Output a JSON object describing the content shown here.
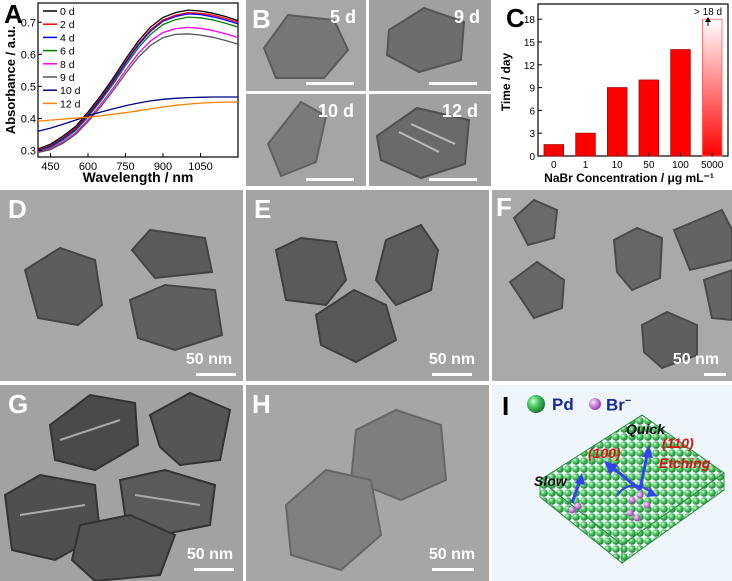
{
  "panel_labels": {
    "A": "A",
    "B": "B",
    "C": "C",
    "D": "D",
    "E": "E",
    "F": "F",
    "G": "G",
    "H": "H",
    "I": "I"
  },
  "chart_data": [
    {
      "type": "line",
      "xlabel": "Wavelength / nm",
      "ylabel": "Absorbance / a.u.",
      "xlim": [
        400,
        1200
      ],
      "ylim": [
        0.28,
        0.76
      ],
      "xticks": [
        "450",
        "600",
        "750",
        "900",
        "1050"
      ],
      "yticks": [
        "0.3",
        "0.4",
        "0.5",
        "0.6",
        "0.7"
      ],
      "legend_placement": "top-left",
      "x": [
        400,
        450,
        500,
        550,
        600,
        650,
        700,
        750,
        800,
        850,
        900,
        950,
        1000,
        1050,
        1100,
        1150,
        1200
      ],
      "series": [
        {
          "name": "0 d",
          "color": "#000000",
          "values": [
            0.305,
            0.32,
            0.345,
            0.375,
            0.42,
            0.47,
            0.525,
            0.585,
            0.64,
            0.685,
            0.715,
            0.73,
            0.738,
            0.735,
            0.728,
            0.718,
            0.705
          ]
        },
        {
          "name": "2 d",
          "color": "#ff0000",
          "values": [
            0.302,
            0.316,
            0.34,
            0.37,
            0.414,
            0.464,
            0.518,
            0.577,
            0.632,
            0.676,
            0.707,
            0.722,
            0.73,
            0.728,
            0.722,
            0.712,
            0.7
          ]
        },
        {
          "name": "4 d",
          "color": "#0000ff",
          "values": [
            0.3,
            0.313,
            0.337,
            0.366,
            0.41,
            0.46,
            0.514,
            0.573,
            0.628,
            0.672,
            0.703,
            0.718,
            0.726,
            0.724,
            0.717,
            0.707,
            0.695
          ]
        },
        {
          "name": "6 d",
          "color": "#008000",
          "values": [
            0.298,
            0.31,
            0.333,
            0.362,
            0.405,
            0.454,
            0.507,
            0.565,
            0.619,
            0.662,
            0.693,
            0.708,
            0.716,
            0.714,
            0.707,
            0.697,
            0.685
          ]
        },
        {
          "name": "8 d",
          "color": "#ff00ff",
          "values": [
            0.296,
            0.306,
            0.327,
            0.355,
            0.396,
            0.443,
            0.494,
            0.55,
            0.602,
            0.642,
            0.668,
            0.68,
            0.684,
            0.681,
            0.674,
            0.664,
            0.652
          ]
        },
        {
          "name": "9 d",
          "color": "#555555",
          "values": [
            0.294,
            0.303,
            0.323,
            0.35,
            0.39,
            0.436,
            0.486,
            0.54,
            0.59,
            0.628,
            0.652,
            0.662,
            0.664,
            0.66,
            0.653,
            0.643,
            0.632
          ]
        },
        {
          "name": "10 d",
          "color": "#000080",
          "values": [
            0.36,
            0.37,
            0.382,
            0.395,
            0.408,
            0.42,
            0.43,
            0.44,
            0.448,
            0.455,
            0.46,
            0.463,
            0.465,
            0.466,
            0.467,
            0.467,
            0.467
          ]
        },
        {
          "name": "12 d",
          "color": "#ff8000",
          "values": [
            0.392,
            0.395,
            0.398,
            0.401,
            0.404,
            0.408,
            0.413,
            0.418,
            0.424,
            0.43,
            0.436,
            0.441,
            0.445,
            0.448,
            0.45,
            0.451,
            0.452
          ]
        }
      ]
    },
    {
      "type": "bar",
      "xlabel": "NaBr Concentration / μg mL⁻¹",
      "ylabel": "Time / day",
      "ylim": [
        0,
        20
      ],
      "yticks": [
        "0",
        "3",
        "6",
        "9",
        "12",
        "15",
        "18"
      ],
      "categories": [
        "0",
        "1",
        "10",
        "50",
        "100",
        "5000"
      ],
      "values": [
        1.5,
        3,
        9,
        10,
        14,
        18
      ],
      "bar_color": "#ff0000",
      "last_bar_style": "gradient, open-ended above 18",
      "annotation": "> 18 d"
    }
  ],
  "panel_b": {
    "days": [
      "5 d",
      "9 d",
      "10 d",
      "12 d"
    ]
  },
  "scale_bars": {
    "D": "50 nm",
    "E": "50 nm",
    "F": "50 nm",
    "G": "50 nm",
    "H": "50 nm"
  },
  "panel_i": {
    "legend_pd": "Pd",
    "legend_br": "Br",
    "legend_br_sup": "−",
    "quick": "Quick",
    "slow": "Slow",
    "facet_110": "(110)",
    "facet_100": "(100)",
    "etching": "Etching",
    "colors": {
      "pd": "#3cc05a",
      "br": "#cc66dd",
      "arrow": "#3344ee",
      "facet_text": "#dd1111"
    }
  }
}
